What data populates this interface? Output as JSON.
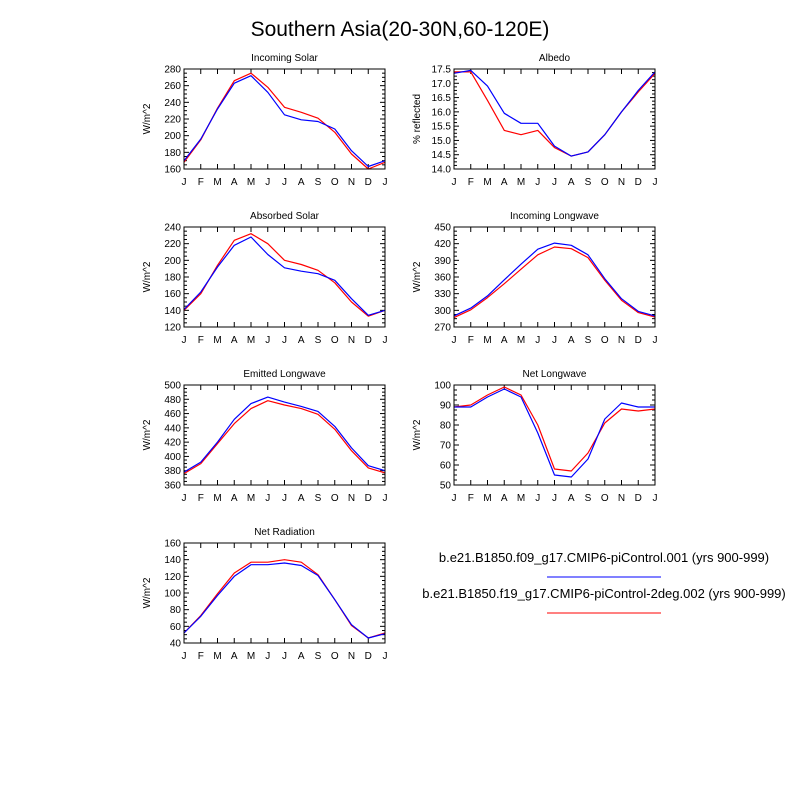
{
  "title": "Southern Asia(20-30N,60-120E)",
  "months": [
    "J",
    "F",
    "M",
    "A",
    "M",
    "J",
    "J",
    "A",
    "S",
    "O",
    "N",
    "D",
    "J"
  ],
  "series": [
    {
      "name": "b.e21.B1850.f09_g17.CMIP6-piControl.001 (yrs 900-999)",
      "color": "#0000ff"
    },
    {
      "name": "b.e21.B1850.f19_g17.CMIP6-piControl-2deg.002 (yrs 900-999)",
      "color": "#ff0000"
    }
  ],
  "chart_data": [
    {
      "type": "line",
      "title": "Incoming Solar",
      "ylabel": "W/m^2",
      "ylim": [
        160,
        280
      ],
      "yticks": [
        160,
        180,
        200,
        220,
        240,
        260,
        280
      ],
      "x": [
        "J",
        "F",
        "M",
        "A",
        "M",
        "J",
        "J",
        "A",
        "S",
        "O",
        "N",
        "D",
        "J"
      ],
      "series": [
        {
          "name": "b.e21.B1850.f09_g17.CMIP6-piControl.001 (yrs 900-999)",
          "values": [
            170,
            196,
            232,
            263,
            272,
            252,
            225,
            219,
            217,
            208,
            182,
            163,
            170
          ]
        },
        {
          "name": "b.e21.B1850.f19_g17.CMIP6-piControl-2deg.002 (yrs 900-999)",
          "values": [
            168,
            195,
            233,
            266,
            275,
            258,
            234,
            228,
            221,
            204,
            178,
            160,
            168
          ]
        }
      ]
    },
    {
      "type": "line",
      "title": "Albedo",
      "ylabel": "% reflected",
      "ylim": [
        14.0,
        17.5
      ],
      "yticks": [
        14.0,
        14.5,
        15.0,
        15.5,
        16.0,
        16.5,
        17.0,
        17.5
      ],
      "ytick_labels": [
        "14.0",
        "14.5",
        "15.0",
        "15.5",
        "16.0",
        "16.5",
        "17.0",
        "17.5"
      ],
      "x": [
        "J",
        "F",
        "M",
        "A",
        "M",
        "J",
        "J",
        "A",
        "S",
        "O",
        "N",
        "D",
        "J"
      ],
      "series": [
        {
          "name": "b.e21.B1850.f09_g17.CMIP6-piControl.001 (yrs 900-999)",
          "values": [
            17.35,
            17.45,
            16.9,
            15.95,
            15.6,
            15.6,
            14.8,
            14.45,
            14.6,
            15.2,
            16.0,
            16.75,
            17.4
          ]
        },
        {
          "name": "b.e21.B1850.f19_g17.CMIP6-piControl-2deg.002 (yrs 900-999)",
          "values": [
            17.4,
            17.4,
            16.4,
            15.35,
            15.2,
            15.35,
            14.75,
            14.45,
            14.6,
            15.2,
            16.0,
            16.7,
            17.35
          ]
        }
      ]
    },
    {
      "type": "line",
      "title": "Absorbed Solar",
      "ylabel": "W/m^2",
      "ylim": [
        120,
        240
      ],
      "yticks": [
        120,
        140,
        160,
        180,
        200,
        220,
        240
      ],
      "x": [
        "J",
        "F",
        "M",
        "A",
        "M",
        "J",
        "J",
        "A",
        "S",
        "O",
        "N",
        "D",
        "J"
      ],
      "series": [
        {
          "name": "b.e21.B1850.f09_g17.CMIP6-piControl.001 (yrs 900-999)",
          "values": [
            141,
            162,
            192,
            218,
            228,
            207,
            191,
            187,
            184,
            176,
            154,
            134,
            140
          ]
        },
        {
          "name": "b.e21.B1850.f19_g17.CMIP6-piControl-2deg.002 (yrs 900-999)",
          "values": [
            140,
            160,
            194,
            224,
            232,
            220,
            200,
            195,
            188,
            173,
            150,
            133,
            140
          ]
        }
      ]
    },
    {
      "type": "line",
      "title": "Incoming Longwave",
      "ylabel": "W/m^2",
      "ylim": [
        270,
        450
      ],
      "yticks": [
        270,
        300,
        330,
        360,
        390,
        420,
        450
      ],
      "x": [
        "J",
        "F",
        "M",
        "A",
        "M",
        "J",
        "J",
        "A",
        "S",
        "O",
        "N",
        "D",
        "J"
      ],
      "series": [
        {
          "name": "b.e21.B1850.f09_g17.CMIP6-piControl.001 (yrs 900-999)",
          "values": [
            290,
            304,
            326,
            355,
            383,
            410,
            421,
            417,
            400,
            357,
            321,
            298,
            290
          ]
        },
        {
          "name": "b.e21.B1850.f19_g17.CMIP6-piControl-2deg.002 (yrs 900-999)",
          "values": [
            287,
            301,
            323,
            348,
            374,
            400,
            414,
            411,
            395,
            354,
            318,
            296,
            288
          ]
        }
      ]
    },
    {
      "type": "line",
      "title": "Emitted Longwave",
      "ylabel": "W/m^2",
      "ylim": [
        360,
        500
      ],
      "yticks": [
        360,
        380,
        400,
        420,
        440,
        460,
        480,
        500
      ],
      "x": [
        "J",
        "F",
        "M",
        "A",
        "M",
        "J",
        "J",
        "A",
        "S",
        "O",
        "N",
        "D",
        "J"
      ],
      "series": [
        {
          "name": "b.e21.B1850.f09_g17.CMIP6-piControl.001 (yrs 900-999)",
          "values": [
            378,
            392,
            420,
            452,
            474,
            483,
            476,
            470,
            463,
            442,
            412,
            387,
            380
          ]
        },
        {
          "name": "b.e21.B1850.f19_g17.CMIP6-piControl-2deg.002 (yrs 900-999)",
          "values": [
            376,
            390,
            418,
            446,
            467,
            478,
            472,
            467,
            459,
            438,
            408,
            384,
            377
          ]
        }
      ]
    },
    {
      "type": "line",
      "title": "Net Longwave",
      "ylabel": "W/m^2",
      "ylim": [
        50,
        100
      ],
      "yticks": [
        50,
        60,
        70,
        80,
        90,
        100
      ],
      "x": [
        "J",
        "F",
        "M",
        "A",
        "M",
        "J",
        "J",
        "A",
        "S",
        "O",
        "N",
        "D",
        "J"
      ],
      "series": [
        {
          "name": "b.e21.B1850.f09_g17.CMIP6-piControl.001 (yrs 900-999)",
          "values": [
            89,
            89,
            94,
            98,
            94,
            76,
            55,
            54,
            63,
            83,
            91,
            89,
            89
          ]
        },
        {
          "name": "b.e21.B1850.f19_g17.CMIP6-piControl-2deg.002 (yrs 900-999)",
          "values": [
            89,
            90,
            95,
            99,
            95,
            80,
            58,
            57,
            66,
            81,
            88,
            87,
            88
          ]
        }
      ]
    },
    {
      "type": "line",
      "title": "Net Radiation",
      "ylabel": "W/m^2",
      "ylim": [
        40,
        160
      ],
      "yticks": [
        40,
        60,
        80,
        100,
        120,
        140,
        160
      ],
      "x": [
        "J",
        "F",
        "M",
        "A",
        "M",
        "J",
        "J",
        "A",
        "S",
        "O",
        "N",
        "D",
        "J"
      ],
      "series": [
        {
          "name": "b.e21.B1850.f09_g17.CMIP6-piControl.001 (yrs 900-999)",
          "values": [
            52,
            72,
            97,
            120,
            134,
            134,
            136,
            133,
            121,
            92,
            62,
            46,
            51
          ]
        },
        {
          "name": "b.e21.B1850.f19_g17.CMIP6-piControl-2deg.002 (yrs 900-999)",
          "values": [
            52,
            73,
            99,
            124,
            137,
            137,
            140,
            137,
            122,
            92,
            61,
            46,
            52
          ]
        }
      ]
    }
  ]
}
